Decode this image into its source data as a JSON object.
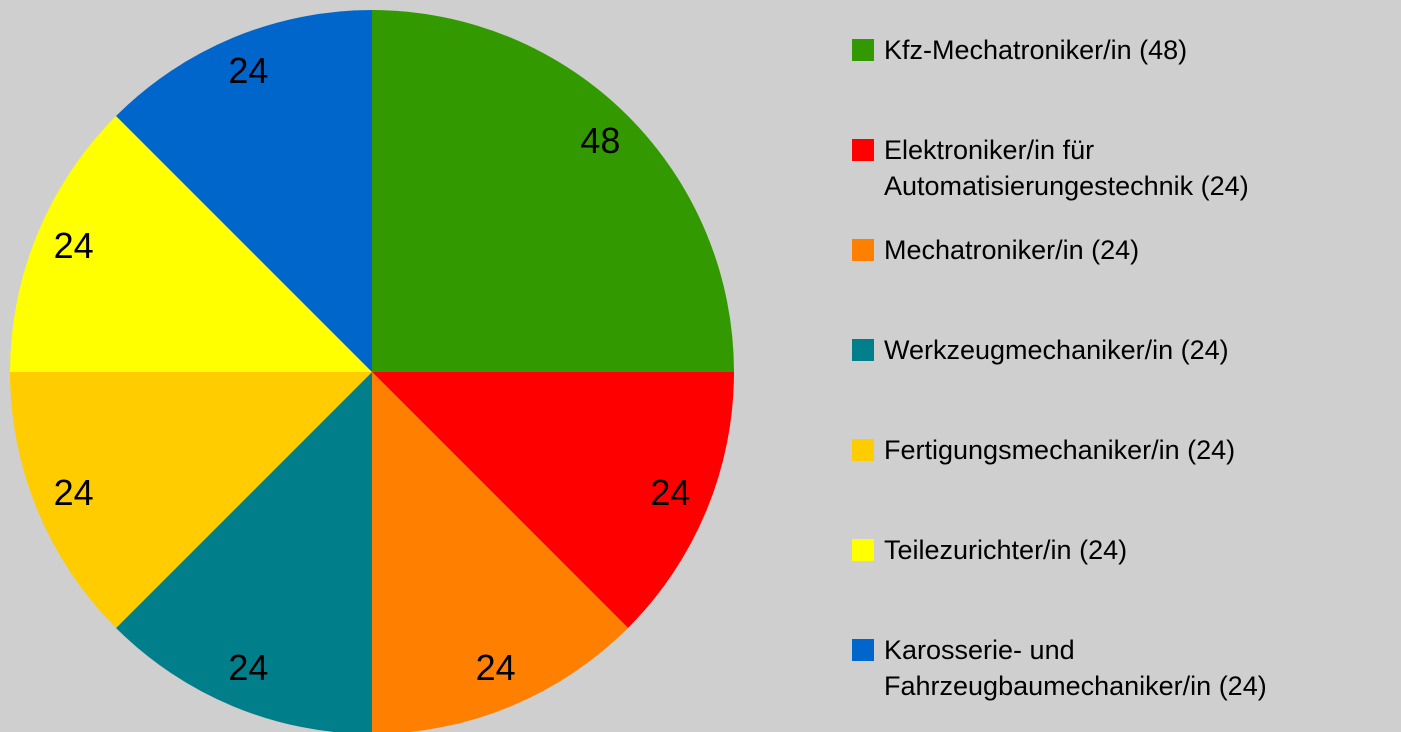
{
  "chart_data": {
    "type": "pie",
    "categories": [
      "Kfz-Mechatroniker/in (48)",
      "Elektroniker/in für Automatisierungestechnik (24)",
      "Mechatroniker/in (24)",
      "Werkzeugmechaniker/in (24)",
      "Fertigungsmechaniker/in (24)",
      "Teilezurichter/in (24)",
      "Karosserie- und Fahrzeugbaumechaniker/in (24)"
    ],
    "values": [
      48,
      24,
      24,
      24,
      24,
      24,
      24
    ],
    "colors": [
      "#339900",
      "#ff0000",
      "#ff8000",
      "#007f8a",
      "#ffcc00",
      "#ffff00",
      "#0066cc"
    ],
    "legend": "right"
  }
}
